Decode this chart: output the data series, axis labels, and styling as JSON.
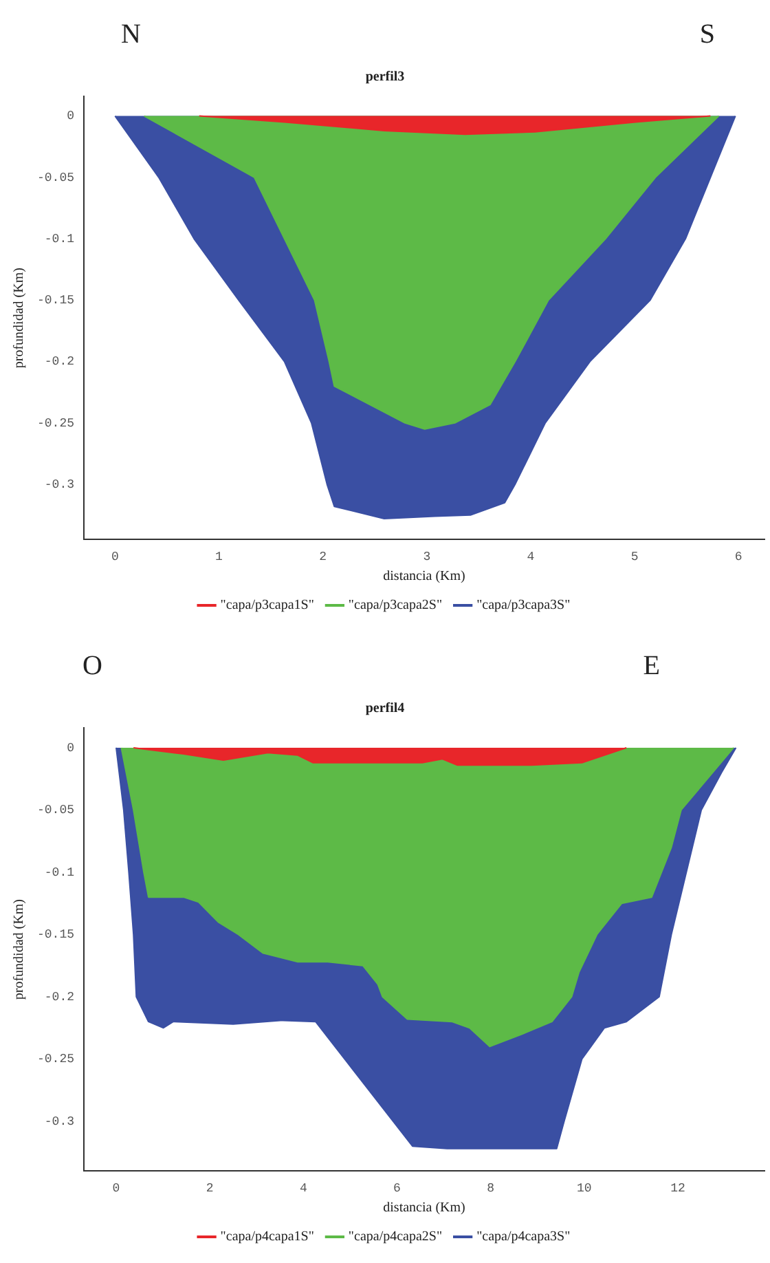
{
  "chart_data": [
    {
      "type": "area",
      "title": "perfil3",
      "xlabel": "distancia (Km)",
      "ylabel": "profundidad (Km)",
      "annotations": [
        "N",
        "S"
      ],
      "legend": "bottom",
      "grid": false,
      "xlim": [
        -0.3,
        6.25
      ],
      "ylim": [
        -0.345,
        0.016
      ],
      "xticks": [
        0,
        1,
        2,
        3,
        4,
        5,
        6
      ],
      "yticks": [
        0,
        -0.05,
        -0.1,
        -0.15,
        -0.2,
        -0.25,
        -0.3
      ],
      "series": [
        {
          "name": "\"capa/p3capa1S\"",
          "color": "#e8262a",
          "x": [
            0.81,
            1.63,
            2.59,
            3.37,
            4.04,
            5.01,
            5.73
          ],
          "values": [
            0,
            -0.005,
            -0.012,
            -0.015,
            -0.013,
            -0.005,
            0
          ]
        },
        {
          "name": "\"capa/p3capa2S\"",
          "color": "#5dba47",
          "x": [
            0.28,
            1.34,
            1.63,
            1.92,
            2.06,
            2.11,
            2.79,
            2.98,
            3.27,
            3.61,
            3.85,
            4.17,
            4.72,
            5.2,
            5.81
          ],
          "values": [
            0,
            -0.05,
            -0.1,
            -0.15,
            -0.2,
            -0.22,
            -0.25,
            -0.255,
            -0.25,
            -0.235,
            -0.2,
            -0.15,
            -0.1,
            -0.05,
            0
          ]
        },
        {
          "name": "\"capa/p3capa3S\"",
          "color": "#3a4fa3",
          "x": [
            0,
            0.42,
            0.76,
            1.19,
            1.63,
            1.89,
            2.04,
            2.11,
            2.59,
            3.08,
            3.42,
            3.75,
            3.85,
            4.14,
            4.57,
            5.15,
            5.49,
            5.73,
            5.97
          ],
          "values": [
            0,
            -0.05,
            -0.1,
            -0.15,
            -0.2,
            -0.25,
            -0.3,
            -0.318,
            -0.328,
            -0.326,
            -0.325,
            -0.315,
            -0.3,
            -0.25,
            -0.2,
            -0.15,
            -0.1,
            -0.05,
            0
          ]
        }
      ]
    },
    {
      "type": "area",
      "title": "perfil4",
      "xlabel": "distancia (Km)",
      "ylabel": "profundidad (Km)",
      "annotations": [
        "O",
        "E"
      ],
      "legend": "bottom",
      "grid": false,
      "xlim": [
        -0.69,
        13.85
      ],
      "ylim": [
        -0.34,
        0.016
      ],
      "xticks": [
        0,
        2,
        4,
        6,
        8,
        10,
        12
      ],
      "yticks": [
        0,
        -0.05,
        -0.1,
        -0.15,
        -0.2,
        -0.25,
        -0.3
      ],
      "series": [
        {
          "name": "\"capa/p4capa1S\"",
          "color": "#e8262a",
          "x": [
            0.37,
            1.44,
            2.29,
            3.24,
            3.88,
            4.2,
            6.54,
            6.97,
            7.29,
            8.88,
            9.95,
            10.9
          ],
          "values": [
            0,
            -0.005,
            -0.01,
            -0.004,
            -0.006,
            -0.012,
            -0.012,
            -0.009,
            -0.014,
            -0.014,
            -0.012,
            0
          ]
        },
        {
          "name": "\"capa/p4capa2S\"",
          "color": "#5dba47",
          "x": [
            0.11,
            0.37,
            0.59,
            0.69,
            1.44,
            1.76,
            2.18,
            2.61,
            3.14,
            3.88,
            4.52,
            5.27,
            5.59,
            5.69,
            6.22,
            7.18,
            7.55,
            7.98,
            8.67,
            9.31,
            9.73,
            9.89,
            10.27,
            10.8,
            11.44,
            11.86,
            12.07,
            13.19
          ],
          "values": [
            0,
            -0.05,
            -0.1,
            -0.12,
            -0.12,
            -0.124,
            -0.14,
            -0.15,
            -0.165,
            -0.172,
            -0.172,
            -0.175,
            -0.19,
            -0.2,
            -0.218,
            -0.22,
            -0.225,
            -0.24,
            -0.23,
            -0.22,
            -0.2,
            -0.18,
            -0.15,
            -0.125,
            -0.12,
            -0.08,
            -0.05,
            0
          ]
        },
        {
          "name": "\"capa/p4capa3S\"",
          "color": "#3a4fa3",
          "x": [
            0,
            0.16,
            0.27,
            0.37,
            0.43,
            0.69,
            1.01,
            1.22,
            2.5,
            3.56,
            4.26,
            6.33,
            7.07,
            9.41,
            9.57,
            9.95,
            10.43,
            10.9,
            11.6,
            11.86,
            12.18,
            12.5,
            12.93,
            13.24
          ],
          "values": [
            0,
            -0.05,
            -0.1,
            -0.15,
            -0.2,
            -0.22,
            -0.225,
            -0.22,
            -0.222,
            -0.219,
            -0.22,
            -0.32,
            -0.322,
            -0.322,
            -0.3,
            -0.25,
            -0.225,
            -0.22,
            -0.2,
            -0.15,
            -0.1,
            -0.05,
            -0.02,
            0
          ]
        }
      ]
    }
  ]
}
